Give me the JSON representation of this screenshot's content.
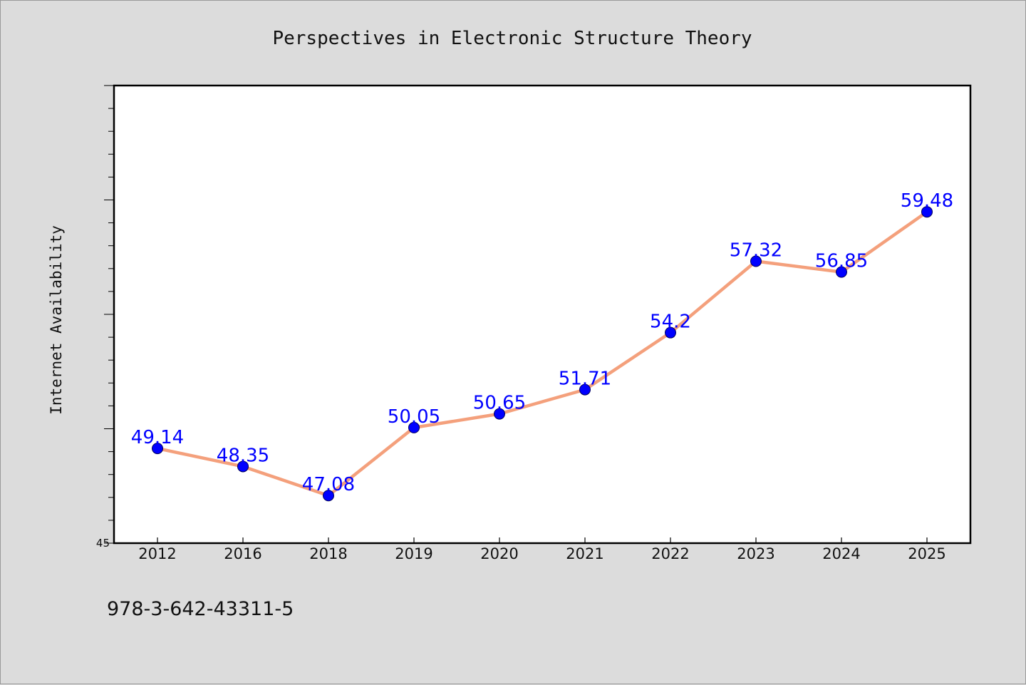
{
  "chart_data": {
    "type": "line",
    "title": "Perspectives in Electronic Structure Theory",
    "xlabel": "",
    "ylabel": "Internet Availability",
    "categories": [
      "2012",
      "2016",
      "2018",
      "2019",
      "2020",
      "2021",
      "2022",
      "2023",
      "2024",
      "2025"
    ],
    "series": [
      {
        "values": [
          49.14,
          48.35,
          47.08,
          50.05,
          50.65,
          51.71,
          54.2,
          57.32,
          56.85,
          59.48
        ],
        "labels": [
          "49.14",
          "48.35",
          "47.08",
          "50.05",
          "50.65",
          "51.71",
          "54.2",
          "57.32",
          "56.85",
          "59.48"
        ]
      }
    ],
    "ylim": [
      45,
      65
    ],
    "yticks_labeled": [
      "45"
    ],
    "grid": false,
    "legend": "none",
    "colors": {
      "line": "#f4a07c",
      "marker": "#0000ff",
      "label": "#0000ff",
      "background": "#dcdcdc",
      "plot_area": "#ffffff"
    }
  },
  "footer": {
    "isbn": "978-3-642-43311-5"
  }
}
